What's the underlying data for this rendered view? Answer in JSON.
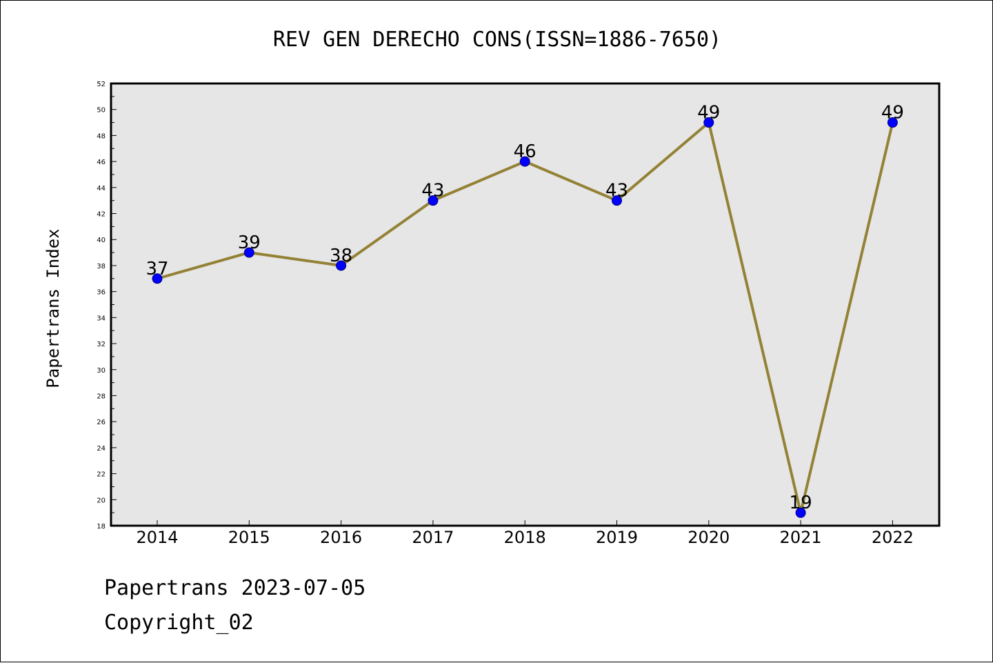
{
  "chart_data": {
    "type": "line",
    "title": "REV GEN DERECHO CONS(ISSN=1886-7650)",
    "xlabel": "",
    "ylabel": "Papertrans Index",
    "categories": [
      "2014",
      "2015",
      "2016",
      "2017",
      "2018",
      "2019",
      "2020",
      "2021",
      "2022"
    ],
    "series": [
      {
        "values": [
          37,
          39,
          38,
          43,
          46,
          43,
          49,
          19,
          49
        ]
      }
    ],
    "data_labels": [
      "37",
      "39",
      "38",
      "43",
      "46",
      "43",
      "49",
      "19",
      "49"
    ],
    "ylim": [
      18,
      52
    ],
    "yticks": [
      "18",
      "20",
      "22",
      "24",
      "26",
      "28",
      "30",
      "32",
      "34",
      "36",
      "38",
      "40",
      "42",
      "44",
      "46",
      "48",
      "50",
      "52"
    ],
    "grid": false,
    "legend": "none",
    "colors": {
      "plot_background": "#e6e6e6",
      "line": "#938235",
      "marker_fill": "#0000ff",
      "marker_stroke": "#000080"
    }
  },
  "footer": {
    "line1": "Papertrans 2023-07-05",
    "line2": "Copyright_02"
  }
}
